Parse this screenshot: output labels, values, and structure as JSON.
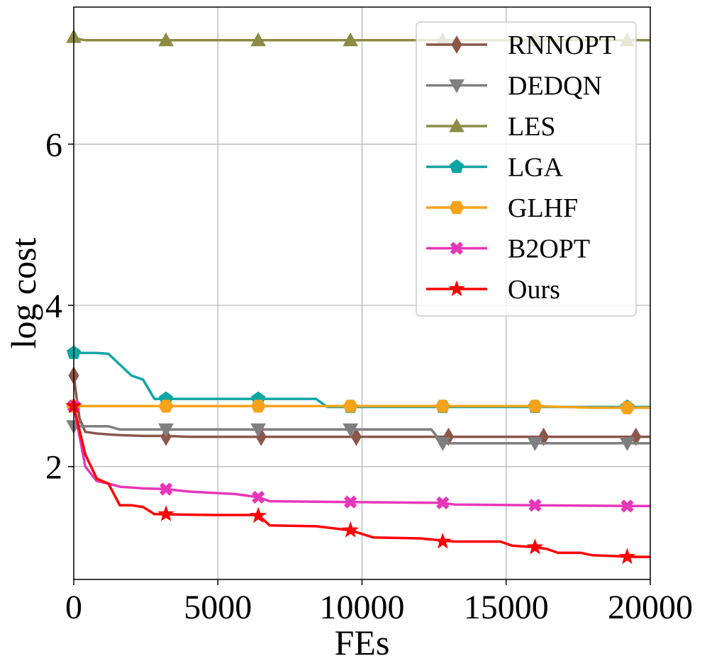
{
  "chart_data": {
    "type": "line",
    "title": "",
    "xlabel": "FEs",
    "ylabel": "log cost",
    "xlim": [
      0,
      20000
    ],
    "ylim": [
      0.6,
      7.7
    ],
    "xticks": [
      0,
      5000,
      10000,
      15000,
      20000
    ],
    "yticks": [
      2,
      4,
      6
    ],
    "grid": true,
    "legend_position": "top-right",
    "series": [
      {
        "name": "RNNOPT",
        "color": "#8c564b",
        "marker": "diamond",
        "x": [
          0,
          100,
          200,
          400,
          800,
          1200,
          1600,
          2400,
          3200,
          4000,
          6400,
          9600,
          12800,
          16000,
          19200,
          20000
        ],
        "y": [
          3.13,
          2.85,
          2.6,
          2.43,
          2.41,
          2.4,
          2.39,
          2.38,
          2.38,
          2.37,
          2.37,
          2.37,
          2.37,
          2.37,
          2.37,
          2.37
        ],
        "markers_x": [
          0,
          3200,
          6500,
          9800,
          13000,
          16300,
          19500
        ],
        "markers_y": [
          3.13,
          2.37,
          2.37,
          2.37,
          2.37,
          2.37,
          2.37
        ]
      },
      {
        "name": "DEDQN",
        "color": "#7f7f7f",
        "marker": "triangle-down",
        "x": [
          0,
          150,
          400,
          1200,
          1600,
          3200,
          9600,
          12400,
          12800,
          20000
        ],
        "y": [
          2.5,
          2.5,
          2.5,
          2.5,
          2.46,
          2.46,
          2.46,
          2.46,
          2.29,
          2.29
        ],
        "markers_x": [
          0,
          3200,
          6400,
          9600,
          12800,
          16000,
          19200
        ],
        "markers_y": [
          2.5,
          2.46,
          2.46,
          2.46,
          2.29,
          2.29,
          2.29
        ]
      },
      {
        "name": "LES",
        "color": "#8c8c45",
        "marker": "triangle-up",
        "x": [
          0,
          200,
          400,
          20000
        ],
        "y": [
          7.33,
          7.3,
          7.29,
          7.29
        ],
        "markers_x": [
          0,
          3200,
          6400,
          9600,
          12800,
          16000,
          19200
        ],
        "markers_y": [
          7.33,
          7.29,
          7.29,
          7.29,
          7.29,
          7.29,
          7.29
        ]
      },
      {
        "name": "LGA",
        "color": "#10a5a5",
        "marker": "pentagon",
        "x": [
          0,
          800,
          1200,
          2000,
          2400,
          2800,
          3200,
          6400,
          8400,
          8800,
          9600,
          20000
        ],
        "y": [
          3.41,
          3.41,
          3.4,
          3.13,
          3.08,
          2.84,
          2.84,
          2.84,
          2.84,
          2.74,
          2.74,
          2.74
        ],
        "markers_x": [
          0,
          3200,
          6400,
          9600,
          12800,
          16000,
          19200
        ],
        "markers_y": [
          3.41,
          2.84,
          2.84,
          2.74,
          2.74,
          2.74,
          2.74
        ]
      },
      {
        "name": "GLHF",
        "color": "#f5a31a",
        "marker": "hexagon",
        "x": [
          0,
          16000,
          18000,
          20000
        ],
        "y": [
          2.75,
          2.75,
          2.73,
          2.73
        ],
        "markers_x": [
          0,
          3200,
          6400,
          9600,
          12800,
          16000,
          19200
        ],
        "markers_y": [
          2.75,
          2.75,
          2.75,
          2.75,
          2.75,
          2.75,
          2.73
        ]
      },
      {
        "name": "B2OPT",
        "color": "#e837b8",
        "marker": "x",
        "x": [
          0,
          400,
          800,
          1200,
          1600,
          2000,
          2400,
          3200,
          4000,
          5600,
          6400,
          6800,
          9600,
          12800,
          13200,
          16000,
          20000
        ],
        "y": [
          2.75,
          2.0,
          1.82,
          1.79,
          1.75,
          1.74,
          1.73,
          1.72,
          1.69,
          1.66,
          1.62,
          1.57,
          1.56,
          1.55,
          1.53,
          1.52,
          1.51
        ],
        "markers_x": [
          0,
          3200,
          6400,
          9600,
          12800,
          16000,
          19200
        ],
        "markers_y": [
          2.75,
          1.72,
          1.62,
          1.56,
          1.55,
          1.52,
          1.51
        ]
      },
      {
        "name": "Ours",
        "color": "#ff0000",
        "marker": "star",
        "x": [
          0,
          400,
          800,
          1200,
          1600,
          2000,
          2400,
          2800,
          4800,
          6400,
          6800,
          8400,
          9600,
          10400,
          12000,
          13200,
          14800,
          15200,
          16000,
          16400,
          16800,
          17600,
          18000,
          18800,
          19200,
          20000
        ],
        "y": [
          2.75,
          2.15,
          1.85,
          1.79,
          1.52,
          1.52,
          1.5,
          1.41,
          1.4,
          1.4,
          1.27,
          1.26,
          1.21,
          1.12,
          1.11,
          1.07,
          1.07,
          1.02,
          1.0,
          0.98,
          0.93,
          0.93,
          0.9,
          0.89,
          0.88,
          0.88
        ],
        "markers_x": [
          0,
          3200,
          6400,
          9600,
          12800,
          16000,
          19200
        ],
        "markers_y": [
          2.75,
          1.41,
          1.39,
          1.21,
          1.07,
          1.0,
          0.88
        ]
      }
    ]
  }
}
